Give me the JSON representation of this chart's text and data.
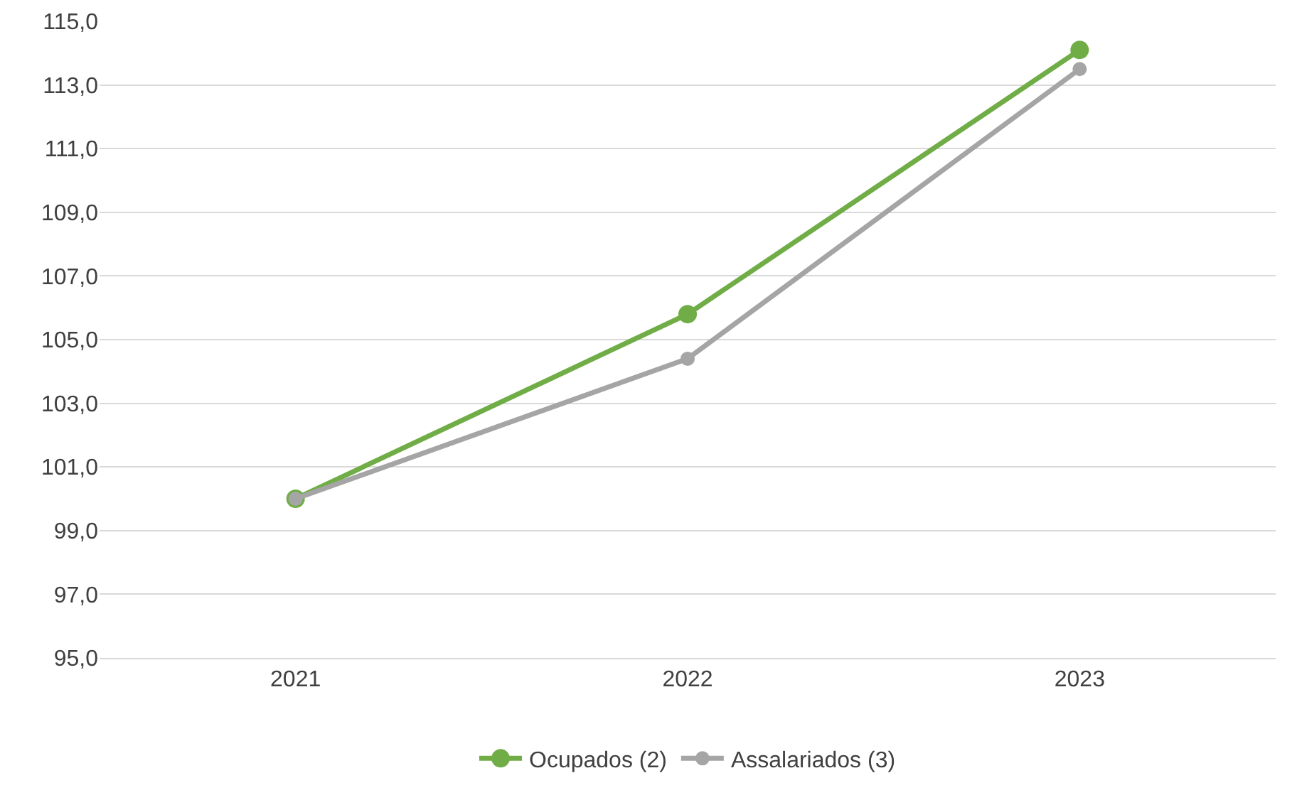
{
  "chart_data": {
    "type": "line",
    "categories": [
      "2021",
      "2022",
      "2023"
    ],
    "series": [
      {
        "name": "Ocupados (2)",
        "color": "#70ad47",
        "values": [
          100.0,
          105.8,
          114.1
        ]
      },
      {
        "name": "Assalariados (3)",
        "color": "#a5a5a5",
        "values": [
          100.0,
          104.4,
          113.5
        ]
      }
    ],
    "ylim": [
      95,
      115
    ],
    "yticks": [
      {
        "value": 95,
        "label": "95,0"
      },
      {
        "value": 97,
        "label": "97,0"
      },
      {
        "value": 99,
        "label": "99,0"
      },
      {
        "value": 101,
        "label": "101,0"
      },
      {
        "value": 103,
        "label": "103,0"
      },
      {
        "value": 105,
        "label": "105,0"
      },
      {
        "value": 107,
        "label": "107,0"
      },
      {
        "value": 109,
        "label": "109,0"
      },
      {
        "value": 111,
        "label": "111,0"
      },
      {
        "value": 113,
        "label": "113,0"
      },
      {
        "value": 115,
        "label": "115,0"
      }
    ],
    "grid": "y",
    "legend": "bottom",
    "marker": "circle",
    "line_style": "solid"
  }
}
